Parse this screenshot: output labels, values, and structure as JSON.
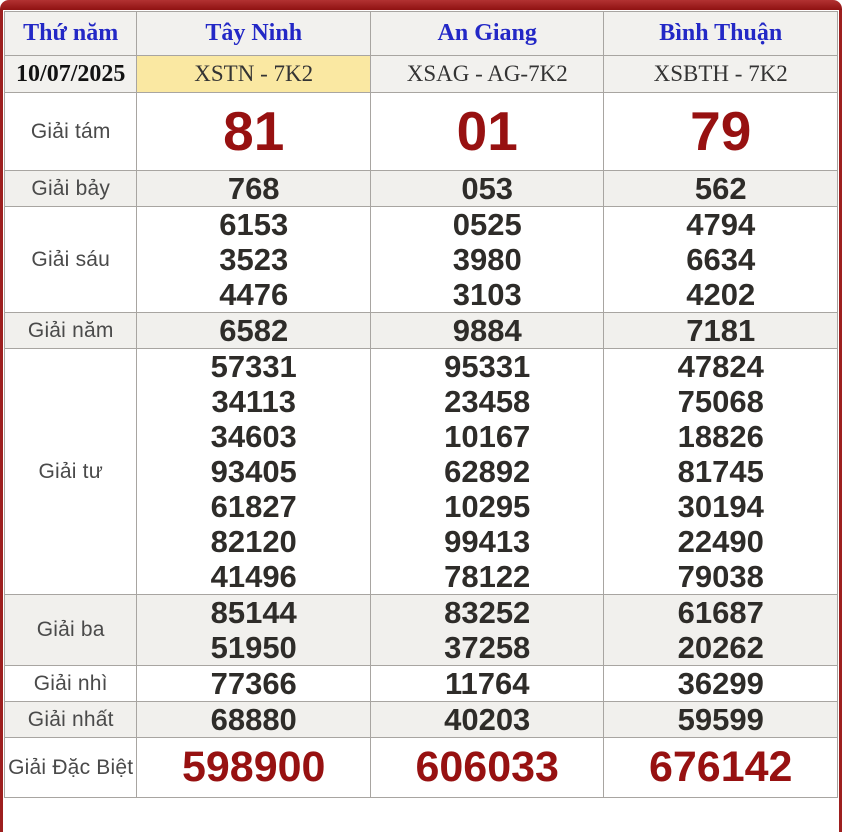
{
  "frame": {
    "accent_red": "#9d1f1f",
    "highlight_yellow": "#fae8a2",
    "link_blue": "#2328c6",
    "prize_red": "#971111"
  },
  "table": {
    "header": {
      "day_label": "Thứ năm",
      "provinces": [
        "Tây Ninh",
        "An Giang",
        "Bình Thuận"
      ]
    },
    "date_row": {
      "date": "10/07/2025",
      "codes": [
        "XSTN - 7K2",
        "XSAG - AG-7K2",
        "XSBTH - 7K2"
      ]
    },
    "rows": [
      {
        "label": "Giải tám",
        "values": [
          [
            "81"
          ],
          [
            "01"
          ],
          [
            "79"
          ]
        ]
      },
      {
        "label": "Giải bảy",
        "values": [
          [
            "768"
          ],
          [
            "053"
          ],
          [
            "562"
          ]
        ]
      },
      {
        "label": "Giải sáu",
        "values": [
          [
            "6153",
            "3523",
            "4476"
          ],
          [
            "0525",
            "3980",
            "3103"
          ],
          [
            "4794",
            "6634",
            "4202"
          ]
        ]
      },
      {
        "label": "Giải năm",
        "values": [
          [
            "6582"
          ],
          [
            "9884"
          ],
          [
            "7181"
          ]
        ]
      },
      {
        "label": "Giải tư",
        "values": [
          [
            "57331",
            "34113",
            "34603",
            "93405",
            "61827",
            "82120",
            "41496"
          ],
          [
            "95331",
            "23458",
            "10167",
            "62892",
            "10295",
            "99413",
            "78122"
          ],
          [
            "47824",
            "75068",
            "18826",
            "81745",
            "30194",
            "22490",
            "79038"
          ]
        ]
      },
      {
        "label": "Giải ba",
        "values": [
          [
            "85144",
            "51950"
          ],
          [
            "83252",
            "37258"
          ],
          [
            "61687",
            "20262"
          ]
        ]
      },
      {
        "label": "Giải nhì",
        "values": [
          [
            "77366"
          ],
          [
            "11764"
          ],
          [
            "36299"
          ]
        ]
      },
      {
        "label": "Giải nhất",
        "values": [
          [
            "68880"
          ],
          [
            "40203"
          ],
          [
            "59599"
          ]
        ]
      },
      {
        "label": "Giải Đặc Biệt",
        "values": [
          [
            "598900"
          ],
          [
            "606033"
          ],
          [
            "676142"
          ]
        ]
      }
    ]
  }
}
